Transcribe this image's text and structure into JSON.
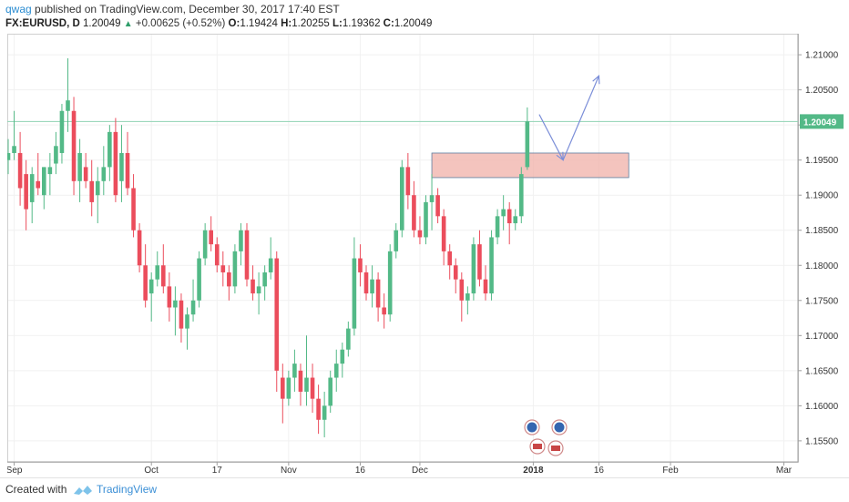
{
  "header": {
    "user": "qwag",
    "published": " published on TradingView.com, December 30, 2017 17:40 EST",
    "symbol": "FX:EURUSD, D",
    "last": "1.20049",
    "change": "+0.00625 (+0.52%)",
    "o_label": "O:",
    "o": "1.19424",
    "h_label": "H:",
    "h": "1.20255",
    "l_label": "L:",
    "l": "1.19362",
    "c_label": "C:",
    "c": "1.20049"
  },
  "footer": {
    "created": "Created with",
    "brand": "TradingView"
  },
  "colors": {
    "up": "#53b987",
    "down": "#eb4d5c",
    "zone_fill": "#f0b0a8",
    "zone_stroke": "#5c7ea0",
    "arrow": "#7b8ed8",
    "price_label": "#53b987"
  },
  "chart_data": {
    "type": "candlestick",
    "symbol": "FX:EURUSD",
    "timeframe": "D",
    "ylim": [
      1.152,
      1.213
    ],
    "y_ticks": [
      "1.21000",
      "1.20500",
      "1.20000",
      "1.19500",
      "1.19000",
      "1.18500",
      "1.18000",
      "1.17500",
      "1.17000",
      "1.16500",
      "1.16000",
      "1.15500"
    ],
    "x_ticks": [
      {
        "label": "Sep",
        "i": 1
      },
      {
        "label": "Oct",
        "i": 24
      },
      {
        "label": "17",
        "i": 35
      },
      {
        "label": "Nov",
        "i": 47
      },
      {
        "label": "16",
        "i": 59
      },
      {
        "label": "Dec",
        "i": 69
      },
      {
        "label": "2018",
        "i": 88
      },
      {
        "label": "16",
        "i": 99
      },
      {
        "label": "Feb",
        "i": 111
      },
      {
        "label": "Mar",
        "i": 130
      }
    ],
    "last_price": "1.20049",
    "candles": [
      [
        1.195,
        1.198,
        1.193,
        1.196
      ],
      [
        1.196,
        1.202,
        1.195,
        1.197
      ],
      [
        1.196,
        1.199,
        1.1885,
        1.191
      ],
      [
        1.193,
        1.195,
        1.185,
        1.188
      ],
      [
        1.189,
        1.194,
        1.186,
        1.193
      ],
      [
        1.192,
        1.196,
        1.19,
        1.191
      ],
      [
        1.19,
        1.194,
        1.188,
        1.194
      ],
      [
        1.193,
        1.196,
        1.19,
        1.194
      ],
      [
        1.1945,
        1.199,
        1.193,
        1.197
      ],
      [
        1.196,
        1.203,
        1.1945,
        1.202
      ],
      [
        1.202,
        1.2095,
        1.199,
        1.2035
      ],
      [
        1.202,
        1.204,
        1.19,
        1.192
      ],
      [
        1.192,
        1.198,
        1.189,
        1.196
      ],
      [
        1.194,
        1.196,
        1.191,
        1.192
      ],
      [
        1.192,
        1.195,
        1.187,
        1.189
      ],
      [
        1.19,
        1.194,
        1.186,
        1.192
      ],
      [
        1.192,
        1.197,
        1.19,
        1.194
      ],
      [
        1.194,
        1.2,
        1.192,
        1.199
      ],
      [
        1.199,
        1.201,
        1.189,
        1.19
      ],
      [
        1.192,
        1.2,
        1.189,
        1.196
      ],
      [
        1.196,
        1.199,
        1.19,
        1.191
      ],
      [
        1.191,
        1.193,
        1.184,
        1.185
      ],
      [
        1.185,
        1.186,
        1.179,
        1.18
      ],
      [
        1.18,
        1.183,
        1.174,
        1.175
      ],
      [
        1.176,
        1.179,
        1.172,
        1.178
      ],
      [
        1.178,
        1.182,
        1.177,
        1.18
      ],
      [
        1.18,
        1.183,
        1.176,
        1.177
      ],
      [
        1.177,
        1.179,
        1.172,
        1.174
      ],
      [
        1.174,
        1.177,
        1.17,
        1.175
      ],
      [
        1.175,
        1.176,
        1.169,
        1.171
      ],
      [
        1.171,
        1.174,
        1.168,
        1.173
      ],
      [
        1.173,
        1.178,
        1.172,
        1.175
      ],
      [
        1.175,
        1.182,
        1.174,
        1.181
      ],
      [
        1.181,
        1.186,
        1.18,
        1.185
      ],
      [
        1.185,
        1.187,
        1.182,
        1.183
      ],
      [
        1.183,
        1.184,
        1.179,
        1.18
      ],
      [
        1.18,
        1.182,
        1.177,
        1.179
      ],
      [
        1.179,
        1.18,
        1.175,
        1.177
      ],
      [
        1.177,
        1.183,
        1.176,
        1.182
      ],
      [
        1.182,
        1.186,
        1.18,
        1.185
      ],
      [
        1.185,
        1.186,
        1.177,
        1.178
      ],
      [
        1.178,
        1.18,
        1.175,
        1.176
      ],
      [
        1.176,
        1.179,
        1.173,
        1.177
      ],
      [
        1.177,
        1.18,
        1.175,
        1.179
      ],
      [
        1.179,
        1.184,
        1.178,
        1.181
      ],
      [
        1.181,
        1.182,
        1.162,
        1.165
      ],
      [
        1.164,
        1.166,
        1.1575,
        1.161
      ],
      [
        1.161,
        1.165,
        1.16,
        1.164
      ],
      [
        1.164,
        1.168,
        1.162,
        1.166
      ],
      [
        1.165,
        1.166,
        1.16,
        1.162
      ],
      [
        1.162,
        1.17,
        1.16,
        1.164
      ],
      [
        1.164,
        1.166,
        1.159,
        1.161
      ],
      [
        1.161,
        1.163,
        1.156,
        1.158
      ],
      [
        1.158,
        1.162,
        1.1555,
        1.16
      ],
      [
        1.16,
        1.165,
        1.159,
        1.164
      ],
      [
        1.164,
        1.168,
        1.162,
        1.166
      ],
      [
        1.166,
        1.169,
        1.164,
        1.168
      ],
      [
        1.168,
        1.172,
        1.167,
        1.171
      ],
      [
        1.171,
        1.184,
        1.17,
        1.181
      ],
      [
        1.181,
        1.183,
        1.177,
        1.179
      ],
      [
        1.179,
        1.18,
        1.175,
        1.176
      ],
      [
        1.176,
        1.18,
        1.174,
        1.178
      ],
      [
        1.178,
        1.179,
        1.172,
        1.174
      ],
      [
        1.174,
        1.176,
        1.171,
        1.173
      ],
      [
        1.173,
        1.183,
        1.172,
        1.182
      ],
      [
        1.182,
        1.186,
        1.181,
        1.185
      ],
      [
        1.185,
        1.195,
        1.184,
        1.194
      ],
      [
        1.194,
        1.196,
        1.188,
        1.19
      ],
      [
        1.19,
        1.192,
        1.184,
        1.185
      ],
      [
        1.185,
        1.187,
        1.183,
        1.184
      ],
      [
        1.184,
        1.19,
        1.183,
        1.189
      ],
      [
        1.189,
        1.193,
        1.185,
        1.19
      ],
      [
        1.19,
        1.191,
        1.186,
        1.187
      ],
      [
        1.187,
        1.188,
        1.18,
        1.182
      ],
      [
        1.182,
        1.183,
        1.178,
        1.18
      ],
      [
        1.18,
        1.181,
        1.176,
        1.178
      ],
      [
        1.178,
        1.179,
        1.172,
        1.175
      ],
      [
        1.175,
        1.177,
        1.173,
        1.176
      ],
      [
        1.176,
        1.184,
        1.175,
        1.183
      ],
      [
        1.183,
        1.185,
        1.177,
        1.178
      ],
      [
        1.178,
        1.18,
        1.175,
        1.176
      ],
      [
        1.176,
        1.185,
        1.175,
        1.184
      ],
      [
        1.184,
        1.188,
        1.183,
        1.187
      ],
      [
        1.187,
        1.19,
        1.185,
        1.188
      ],
      [
        1.188,
        1.189,
        1.183,
        1.186
      ],
      [
        1.186,
        1.188,
        1.185,
        1.187
      ],
      [
        1.187,
        1.194,
        1.186,
        1.193
      ],
      [
        1.194,
        1.2025,
        1.1936,
        1.2005
      ]
    ],
    "annotations": {
      "zone": {
        "y_top": 1.196,
        "y_bottom": 1.1925,
        "i_start": 71,
        "i_end": 104
      },
      "arrow_down": {
        "from": [
          89,
          1.2015
        ],
        "to": [
          93,
          1.195
        ]
      },
      "arrow_up": {
        "from": [
          93,
          1.195
        ],
        "to": [
          99,
          1.207
        ]
      }
    }
  }
}
